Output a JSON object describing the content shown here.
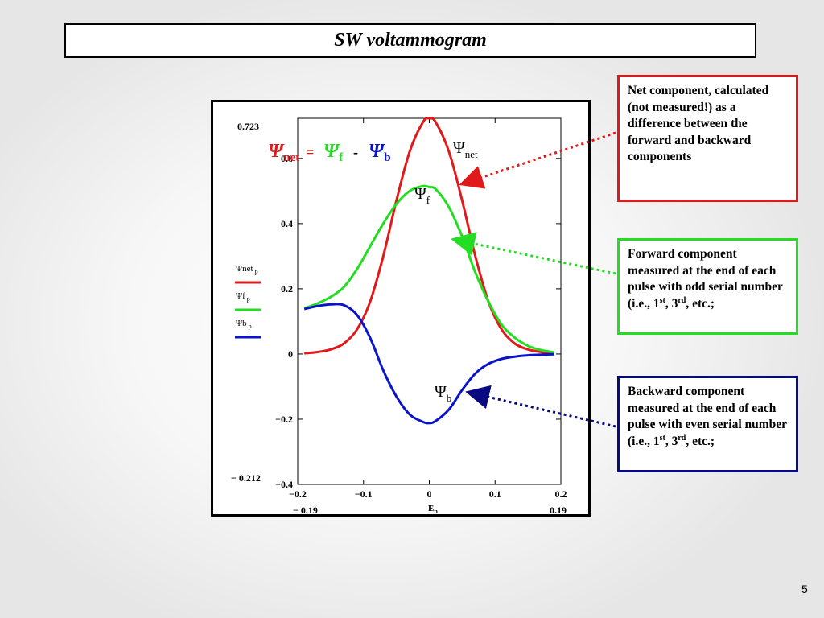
{
  "slide": {
    "title": "SW voltammogram",
    "page_number": "5"
  },
  "notes": {
    "net_text": "Net component, calculated (not measured!) as a difference between the forward and backward components",
    "forward_text_1": "Forward component measured at the end of each pulse with odd serial number (i.e., 1",
    "forward_sup_1": "st",
    "forward_text_2": ", 3",
    "forward_sup_2": "rd",
    "forward_text_3": ", etc.;",
    "backward_text_1": "Backward component measured at the end of each pulse with even serial number (i.e., 1",
    "backward_sup_1": "st",
    "backward_text_2": ", 3",
    "backward_sup_2": "rd",
    "backward_text_3": ", etc.;"
  },
  "chart": {
    "equation": {
      "psi": "Ψ",
      "net_sub": "net",
      "equals": "=",
      "f_sub": "f",
      "minus": "-",
      "b_sub": "b"
    },
    "curve_labels": {
      "net": {
        "psi": "Ψ",
        "sub": "net"
      },
      "f": {
        "psi": "Ψ",
        "sub": "f"
      },
      "b": {
        "psi": "Ψ",
        "sub": "b"
      }
    },
    "range_labels": {
      "y_top": "0.723",
      "y_bottom": "− 0.212",
      "x_left": "− 0.19",
      "x_right": "0.19"
    },
    "xlabel_main": "E",
    "xlabel_sub": "p"
  },
  "colors": {
    "net": "#e0191b",
    "forward": "#22dd22",
    "backward": "#0a14c8",
    "backward_box": "#0a0a80"
  },
  "chart_data": {
    "type": "line",
    "xlabel": "E p",
    "ylabel": "",
    "xlim": [
      -0.2,
      0.2
    ],
    "ylim": [
      -0.4,
      0.723
    ],
    "xticks": [
      -0.2,
      -0.1,
      0,
      0.1,
      0.2
    ],
    "xtick_labels": [
      "−0.2",
      "−0.1",
      "0",
      "0.1",
      "0.2"
    ],
    "yticks": [
      -0.4,
      -0.2,
      0,
      0.2,
      0.4,
      0.6
    ],
    "ytick_labels": [
      "−0.4",
      "−0.2",
      "0",
      "0.2",
      "0.4",
      "0.6"
    ],
    "legend_position": "left",
    "x": [
      -0.19,
      -0.17,
      -0.15,
      -0.13,
      -0.11,
      -0.09,
      -0.07,
      -0.05,
      -0.03,
      -0.01,
      0,
      0.01,
      0.03,
      0.05,
      0.07,
      0.09,
      0.11,
      0.13,
      0.15,
      0.17,
      0.19
    ],
    "series": [
      {
        "name": "Ψnet p",
        "color": "#e0191b",
        "values": [
          0.002,
          0.006,
          0.014,
          0.032,
          0.075,
          0.16,
          0.3,
          0.47,
          0.62,
          0.71,
          0.723,
          0.71,
          0.62,
          0.47,
          0.3,
          0.16,
          0.075,
          0.032,
          0.014,
          0.006,
          0.002
        ]
      },
      {
        "name": "Ψf p",
        "color": "#22dd22",
        "values": [
          0.14,
          0.155,
          0.175,
          0.205,
          0.26,
          0.33,
          0.4,
          0.46,
          0.5,
          0.515,
          0.512,
          0.505,
          0.45,
          0.36,
          0.25,
          0.16,
          0.09,
          0.05,
          0.025,
          0.012,
          0.005
        ]
      },
      {
        "name": "Ψb p",
        "color": "#0a14c8",
        "values": [
          0.138,
          0.147,
          0.152,
          0.15,
          0.12,
          0.05,
          -0.05,
          -0.13,
          -0.185,
          -0.208,
          -0.212,
          -0.205,
          -0.17,
          -0.11,
          -0.06,
          -0.03,
          -0.015,
          -0.008,
          -0.004,
          -0.002,
          -0.001
        ]
      }
    ]
  }
}
